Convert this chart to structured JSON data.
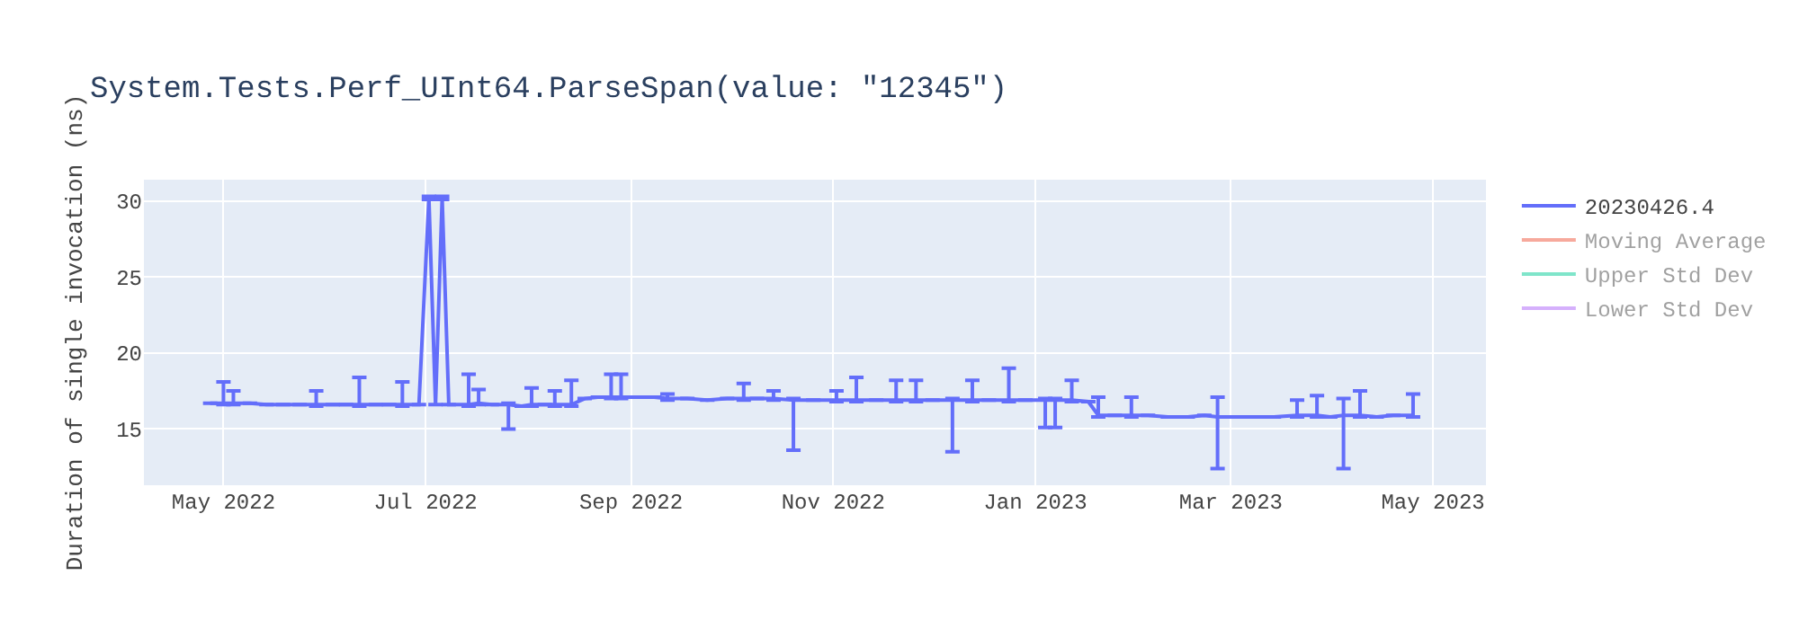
{
  "chart_data": {
    "type": "line",
    "title": "System.Tests.Perf_UInt64.ParseSpan(value: \"12345\")",
    "ylabel": "Duration of single invocation (ns)",
    "x": [
      "2022-04-27",
      "2022-05-01",
      "2022-05-04",
      "2022-05-09",
      "2022-05-14",
      "2022-05-19",
      "2022-05-24",
      "2022-05-29",
      "2022-06-03",
      "2022-06-07",
      "2022-06-11",
      "2022-06-16",
      "2022-06-20",
      "2022-06-24",
      "2022-06-29",
      "2022-07-02",
      "2022-07-04",
      "2022-07-06",
      "2022-07-08",
      "2022-07-14",
      "2022-07-17",
      "2022-07-21",
      "2022-07-26",
      "2022-07-30",
      "2022-08-02",
      "2022-08-06",
      "2022-08-09",
      "2022-08-14",
      "2022-08-18",
      "2022-08-22",
      "2022-08-26",
      "2022-08-29",
      "2022-09-03",
      "2022-09-08",
      "2022-09-12",
      "2022-09-18",
      "2022-09-24",
      "2022-09-30",
      "2022-10-05",
      "2022-10-09",
      "2022-10-14",
      "2022-10-20",
      "2022-10-26",
      "2022-11-02",
      "2022-11-08",
      "2022-11-14",
      "2022-11-20",
      "2022-11-26",
      "2022-12-01",
      "2022-12-07",
      "2022-12-13",
      "2022-12-18",
      "2022-12-24",
      "2022-12-29",
      "2023-01-04",
      "2023-01-07",
      "2023-01-12",
      "2023-01-17",
      "2023-01-20",
      "2023-01-25",
      "2023-01-30",
      "2023-02-04",
      "2023-02-10",
      "2023-02-16",
      "2023-02-21",
      "2023-02-25",
      "2023-03-02",
      "2023-03-08",
      "2023-03-14",
      "2023-03-21",
      "2023-03-27",
      "2023-03-31",
      "2023-04-04",
      "2023-04-09",
      "2023-04-14",
      "2023-04-19",
      "2023-04-25"
    ],
    "series": [
      {
        "name": "20230426.4",
        "color": "#636efa",
        "values": [
          16.7,
          16.7,
          16.7,
          16.7,
          16.6,
          16.6,
          16.6,
          16.6,
          16.6,
          16.6,
          16.6,
          16.6,
          16.6,
          16.6,
          16.6,
          30.2,
          16.6,
          30.2,
          16.6,
          16.6,
          16.7,
          16.6,
          16.6,
          16.5,
          16.6,
          16.6,
          16.6,
          16.6,
          17.0,
          17.1,
          17.1,
          17.1,
          17.1,
          17.1,
          17.0,
          17.0,
          16.9,
          17.0,
          17.0,
          17.0,
          17.0,
          16.9,
          16.9,
          16.9,
          16.9,
          16.9,
          16.9,
          16.9,
          16.9,
          16.9,
          16.9,
          16.9,
          16.9,
          16.9,
          16.9,
          16.9,
          16.9,
          16.8,
          15.9,
          15.9,
          15.9,
          15.9,
          15.8,
          15.8,
          15.9,
          15.8,
          15.8,
          15.8,
          15.8,
          15.9,
          15.9,
          15.8,
          15.9,
          15.9,
          15.8,
          15.9,
          15.9
        ],
        "errors": [
          null,
          [
            16.6,
            18.1
          ],
          [
            16.6,
            17.5
          ],
          null,
          null,
          null,
          null,
          [
            16.5,
            17.5
          ],
          null,
          null,
          [
            16.5,
            18.4
          ],
          null,
          null,
          [
            16.5,
            18.1
          ],
          null,
          [
            30.1,
            30.3
          ],
          null,
          [
            30.1,
            30.3
          ],
          null,
          [
            16.5,
            18.6
          ],
          [
            16.6,
            17.6
          ],
          null,
          [
            15.0,
            16.7
          ],
          null,
          [
            16.5,
            17.7
          ],
          null,
          [
            16.5,
            17.5
          ],
          [
            16.5,
            18.2
          ],
          null,
          null,
          [
            17.0,
            18.6
          ],
          [
            17.0,
            18.6
          ],
          null,
          null,
          [
            16.9,
            17.3
          ],
          null,
          null,
          null,
          [
            16.9,
            18.0
          ],
          null,
          [
            16.9,
            17.5
          ],
          [
            13.6,
            17.0
          ],
          null,
          [
            16.8,
            17.5
          ],
          [
            16.8,
            18.4
          ],
          null,
          [
            16.8,
            18.2
          ],
          [
            16.8,
            18.2
          ],
          null,
          [
            13.5,
            17.0
          ],
          [
            16.8,
            18.2
          ],
          null,
          [
            16.8,
            19.0
          ],
          null,
          [
            15.1,
            17.0
          ],
          [
            15.1,
            17.0
          ],
          [
            16.8,
            18.2
          ],
          null,
          [
            15.8,
            17.1
          ],
          null,
          [
            15.8,
            17.1
          ],
          null,
          null,
          null,
          null,
          [
            12.4,
            17.1
          ],
          null,
          null,
          null,
          [
            15.8,
            16.9
          ],
          [
            15.8,
            17.2
          ],
          null,
          [
            12.4,
            17.0
          ],
          [
            15.8,
            17.5
          ],
          null,
          null,
          [
            15.8,
            17.3
          ]
        ]
      },
      {
        "name": "Moving Average",
        "color": "#ef553b",
        "values": [
          null,
          null,
          null,
          null,
          null,
          null,
          null,
          null,
          null,
          null,
          null,
          null,
          null,
          null,
          null,
          null,
          null,
          null,
          null,
          null,
          null,
          null,
          null,
          null,
          null,
          null,
          null,
          null,
          null,
          null,
          null,
          null,
          null,
          null,
          null,
          null,
          null,
          null,
          null,
          null,
          null,
          null,
          null,
          null,
          null,
          null,
          null,
          null,
          null,
          null,
          null,
          null,
          null,
          null,
          null,
          null,
          null,
          null,
          null,
          null,
          null,
          null,
          null,
          null,
          null,
          null,
          null,
          null,
          null,
          null,
          null,
          null,
          null,
          null,
          null,
          null,
          null
        ]
      },
      {
        "name": "Upper Std Dev",
        "color": "#00cc96",
        "values": [
          null,
          null,
          null,
          null,
          null,
          null,
          null,
          null,
          null,
          null,
          null,
          null,
          null,
          null,
          null,
          null,
          null,
          null,
          null,
          null,
          null,
          null,
          null,
          null,
          null,
          null,
          null,
          null,
          null,
          null,
          null,
          null,
          null,
          null,
          null,
          null,
          null,
          null,
          null,
          null,
          null,
          null,
          null,
          null,
          null,
          null,
          null,
          null,
          null,
          null,
          null,
          null,
          null,
          null,
          null,
          null,
          null,
          null,
          null,
          null,
          null,
          null,
          null,
          null,
          null,
          null,
          null,
          null,
          null,
          null,
          null,
          null,
          null,
          null,
          null,
          null,
          null
        ]
      },
      {
        "name": "Lower Std Dev",
        "color": "#ab63fa",
        "values": [
          null,
          null,
          null,
          null,
          null,
          null,
          null,
          null,
          null,
          null,
          null,
          null,
          null,
          null,
          null,
          null,
          null,
          null,
          null,
          null,
          null,
          null,
          null,
          null,
          null,
          null,
          null,
          null,
          null,
          null,
          null,
          null,
          null,
          null,
          null,
          null,
          null,
          null,
          null,
          null,
          null,
          null,
          null,
          null,
          null,
          null,
          null,
          null,
          null,
          null,
          null,
          null,
          null,
          null,
          null,
          null,
          null,
          null,
          null,
          null,
          null,
          null,
          null,
          null,
          null,
          null,
          null,
          null,
          null,
          null,
          null,
          null,
          null,
          null,
          null,
          null,
          null
        ]
      }
    ],
    "xlim": [
      "2022-04-07",
      "2023-05-17"
    ],
    "xticks": [
      {
        "value": "2022-05-01",
        "label": "May 2022"
      },
      {
        "value": "2022-07-01",
        "label": "Jul 2022"
      },
      {
        "value": "2022-09-01",
        "label": "Sep 2022"
      },
      {
        "value": "2022-11-01",
        "label": "Nov 2022"
      },
      {
        "value": "2023-01-01",
        "label": "Jan 2023"
      },
      {
        "value": "2023-03-01",
        "label": "Mar 2023"
      },
      {
        "value": "2023-05-01",
        "label": "May 2023"
      }
    ],
    "ylim": [
      11.3,
      31.4
    ],
    "yticks": [
      15,
      20,
      25,
      30
    ],
    "grid": true,
    "legend": "right",
    "marker": "none",
    "line_style": "solid"
  }
}
